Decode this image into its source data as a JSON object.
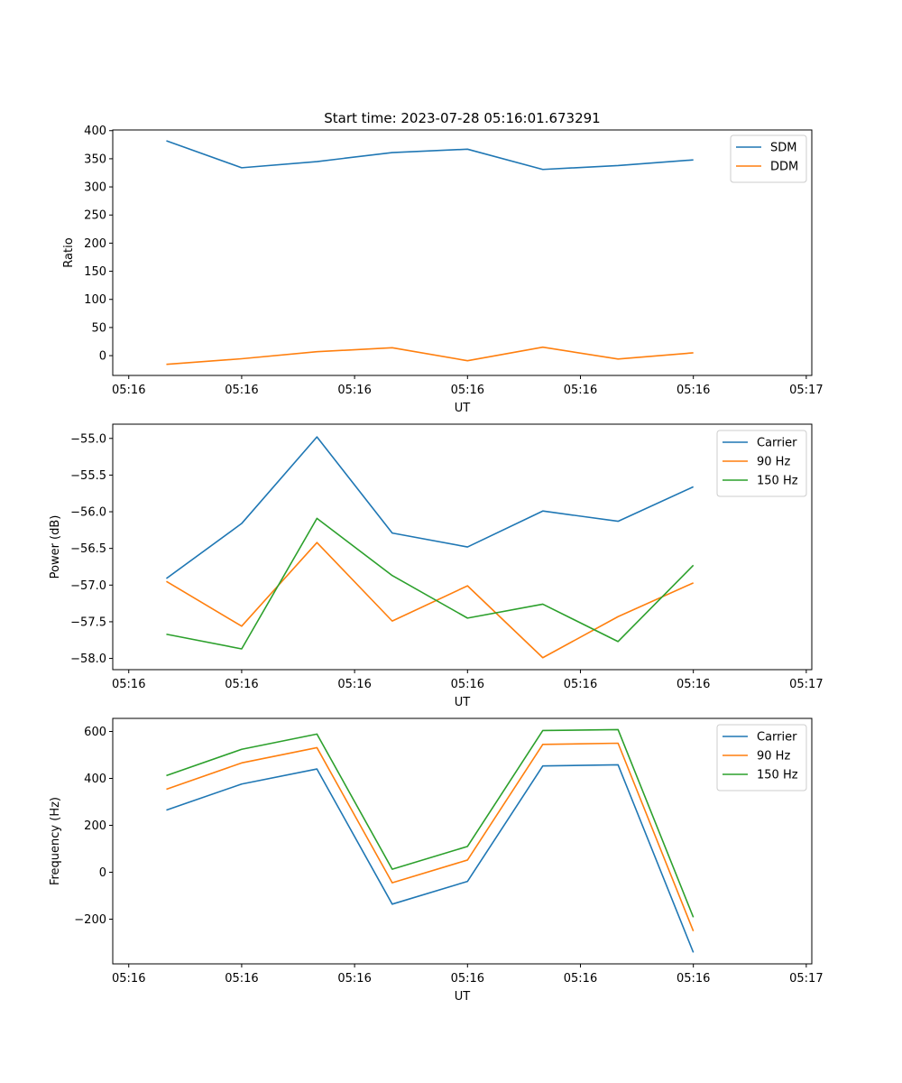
{
  "figure": {
    "title": "Start time: 2023-07-28 05:16:01.673291"
  },
  "chart_data": [
    {
      "type": "line",
      "title": "Start time: 2023-07-28 05:16:01.673291",
      "xlabel": "UT",
      "ylabel": "Ratio",
      "x": [
        1,
        2,
        3,
        4,
        5,
        6,
        7,
        8
      ],
      "xlim": [
        0.2875,
        9.5735
      ],
      "x_ticks": [
        0.5,
        2.0,
        3.5,
        5.0,
        6.5,
        8.0,
        9.5
      ],
      "x_tick_labels": [
        "05:16",
        "05:16",
        "05:16",
        "05:16",
        "05:16",
        "05:16",
        "05:17"
      ],
      "ylim": [
        -35.2,
        401.2
      ],
      "y_ticks": [
        0,
        50,
        100,
        150,
        200,
        250,
        300,
        350,
        400
      ],
      "y_tick_labels": [
        "0",
        "50",
        "100",
        "150",
        "200",
        "250",
        "300",
        "350",
        "400"
      ],
      "legend_position": "top-right",
      "grid": false,
      "series": [
        {
          "name": "SDM",
          "color": "#1f77b4",
          "values": [
            382,
            334,
            345,
            361,
            367,
            331,
            338,
            348
          ]
        },
        {
          "name": "DDM",
          "color": "#ff7f0e",
          "values": [
            -15.5,
            -5.5,
            7,
            14,
            -9,
            15,
            -6,
            5
          ]
        }
      ]
    },
    {
      "type": "line",
      "title": "",
      "xlabel": "UT",
      "ylabel": "Power (dB)",
      "x": [
        1,
        2,
        3,
        4,
        5,
        6,
        7,
        8
      ],
      "xlim": [
        0.2875,
        9.5735
      ],
      "x_ticks": [
        0.5,
        2.0,
        3.5,
        5.0,
        6.5,
        8.0,
        9.5
      ],
      "x_tick_labels": [
        "05:16",
        "05:16",
        "05:16",
        "05:16",
        "05:16",
        "05:16",
        "05:17"
      ],
      "ylim": [
        -58.153,
        -54.806
      ],
      "y_ticks": [
        -58.0,
        -57.5,
        -57.0,
        -56.5,
        -56.0,
        -55.5,
        -55.0
      ],
      "y_tick_labels": [
        "−58.0",
        "−57.5",
        "−57.0",
        "−56.5",
        "−56.0",
        "−55.5",
        "−55.0"
      ],
      "legend_position": "top-right",
      "grid": false,
      "series": [
        {
          "name": "Carrier",
          "color": "#1f77b4",
          "values": [
            -56.91,
            -56.16,
            -54.98,
            -56.29,
            -56.48,
            -55.99,
            -56.13,
            -55.66
          ]
        },
        {
          "name": "90 Hz",
          "color": "#ff7f0e",
          "values": [
            -56.95,
            -57.56,
            -56.42,
            -57.49,
            -57.01,
            -57.99,
            -57.43,
            -56.97
          ]
        },
        {
          "name": "150 Hz",
          "color": "#2ca02c",
          "values": [
            -57.67,
            -57.87,
            -56.09,
            -56.87,
            -57.45,
            -57.26,
            -57.77,
            -56.73
          ]
        }
      ]
    },
    {
      "type": "line",
      "title": "",
      "xlabel": "UT",
      "ylabel": "Frequency (Hz)",
      "x": [
        1,
        2,
        3,
        4,
        5,
        6,
        7,
        8
      ],
      "xlim": [
        0.2875,
        9.5735
      ],
      "x_ticks": [
        0.5,
        2.0,
        3.5,
        5.0,
        6.5,
        8.0,
        9.5
      ],
      "x_tick_labels": [
        "05:16",
        "05:16",
        "05:16",
        "05:16",
        "05:16",
        "05:16",
        "05:17"
      ],
      "ylim": [
        -390.6,
        655.8
      ],
      "y_ticks": [
        -200,
        0,
        200,
        400,
        600
      ],
      "y_tick_labels": [
        "−200",
        "0",
        "200",
        "400",
        "600"
      ],
      "legend_position": "top-right",
      "grid": false,
      "series": [
        {
          "name": "Carrier",
          "color": "#1f77b4",
          "values": [
            265,
            376,
            440,
            -136,
            -39,
            453,
            458,
            -342
          ]
        },
        {
          "name": "90 Hz",
          "color": "#ff7f0e",
          "values": [
            354,
            466,
            531,
            -45,
            52,
            545,
            550,
            -251
          ]
        },
        {
          "name": "150 Hz",
          "color": "#2ca02c",
          "values": [
            412,
            524,
            589,
            13,
            110,
            604,
            608,
            -192
          ]
        }
      ]
    }
  ]
}
